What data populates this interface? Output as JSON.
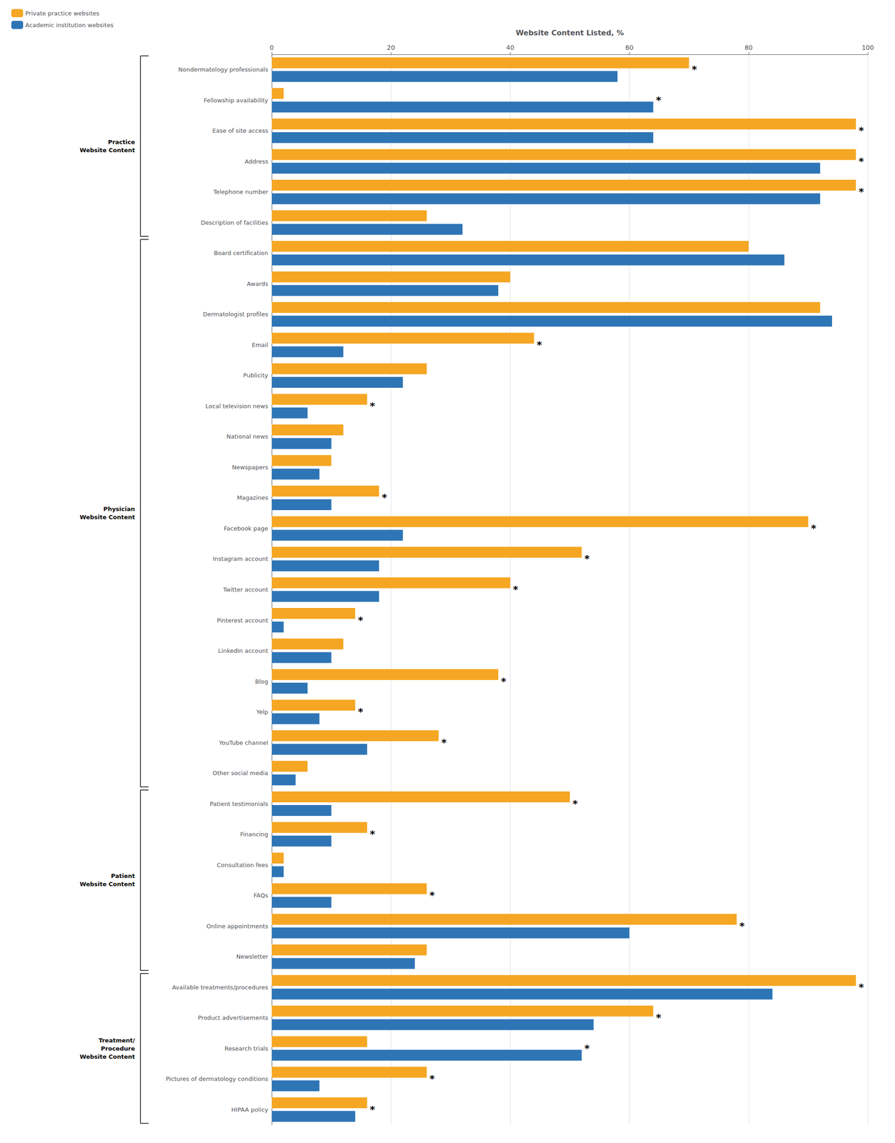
{
  "chart_data": {
    "type": "bar",
    "orientation": "horizontal",
    "xlabel": "Website Content Listed, %",
    "categories": [
      "Nondermatology professionals",
      "Fellowship availability",
      "Ease of site access",
      "Address",
      "Telephone number",
      "Description of facilities",
      "Board certification",
      "Awards",
      "Dermatologist profiles",
      "Email",
      "Publicity",
      "Local television news",
      "National news",
      "Newspapers",
      "Magazines",
      "Facebook page",
      "Instagram account",
      "Twitter account",
      "Pinterest account",
      "LinkedIn account",
      "Blog",
      "Yelp",
      "YouTube channel",
      "Other social media",
      "Patient testimonials",
      "Financing",
      "Consultation fees",
      "FAQs",
      "Online appointments",
      "Newsletter",
      "Available treatments/procedures",
      "Product advertisements",
      "Research trials",
      "Pictures of dermatology conditions",
      "HIPAA policy"
    ],
    "series": [
      {
        "name": "Private practice websites",
        "color": "#F5A623",
        "values": [
          70,
          2,
          98,
          98,
          98,
          26,
          80,
          40,
          92,
          44,
          26,
          16,
          12,
          10,
          18,
          90,
          52,
          40,
          14,
          12,
          38,
          14,
          28,
          6,
          50,
          16,
          2,
          26,
          78,
          26,
          98,
          64,
          16,
          26,
          16
        ]
      },
      {
        "name": "Academic institution websites",
        "color": "#2E75B6",
        "values": [
          58,
          64,
          64,
          92,
          92,
          32,
          86,
          38,
          94,
          12,
          22,
          6,
          10,
          8,
          10,
          22,
          18,
          18,
          2,
          10,
          6,
          8,
          16,
          4,
          10,
          10,
          2,
          10,
          60,
          24,
          84,
          54,
          52,
          8,
          14
        ]
      }
    ],
    "annotations": [
      {
        "text": "*",
        "category": "Nondermatology professionals"
      },
      {
        "text": "*",
        "category": "Fellowship availability"
      },
      {
        "text": "*",
        "category": "Ease of site access"
      },
      {
        "text": "*",
        "category": "Address"
      },
      {
        "text": "*",
        "category": "Telephone number"
      },
      {
        "text": "*",
        "category": "Email"
      },
      {
        "text": "*",
        "category": "Local television news"
      },
      {
        "text": "*",
        "category": "Magazines"
      },
      {
        "text": "*",
        "category": "Facebook page"
      },
      {
        "text": "*",
        "category": "Instagram account"
      },
      {
        "text": "*",
        "category": "Twitter account"
      },
      {
        "text": "*",
        "category": "Pinterest account"
      },
      {
        "text": "*",
        "category": "Blog"
      },
      {
        "text": "*",
        "category": "Yelp"
      },
      {
        "text": "*",
        "category": "YouTube channel"
      },
      {
        "text": "*",
        "category": "Patient testimonials"
      },
      {
        "text": "*",
        "category": "Financing"
      },
      {
        "text": "*",
        "category": "FAQs"
      },
      {
        "text": "*",
        "category": "Online appointments"
      },
      {
        "text": "*",
        "category": "Available treatments/procedures"
      },
      {
        "text": "*",
        "category": "Product advertisements"
      },
      {
        "text": "*",
        "category": "Research trials"
      },
      {
        "text": "*",
        "category": "Pictures of dermatology conditions"
      },
      {
        "text": "*",
        "category": "HIPAA policy"
      },
      {
        "text": "Practice\nWebsite Content",
        "from": "Nondermatology professionals",
        "to": "Description of facilities"
      },
      {
        "text": "Physician\nWebsite Content",
        "from": "Board certification",
        "to": "Other social media"
      },
      {
        "text": "Patient\nWebsite Content",
        "from": "Patient testimonials",
        "to": "Newsletter"
      },
      {
        "text": "Treatment/\nProcedure\nWebsite Content",
        "from": "Available treatments/procedures",
        "to": "HIPAA policy"
      }
    ],
    "xlim": [
      0,
      100
    ],
    "xticks": [
      0,
      20,
      40,
      60,
      80,
      100
    ],
    "grid": true,
    "legend": "upper left"
  }
}
